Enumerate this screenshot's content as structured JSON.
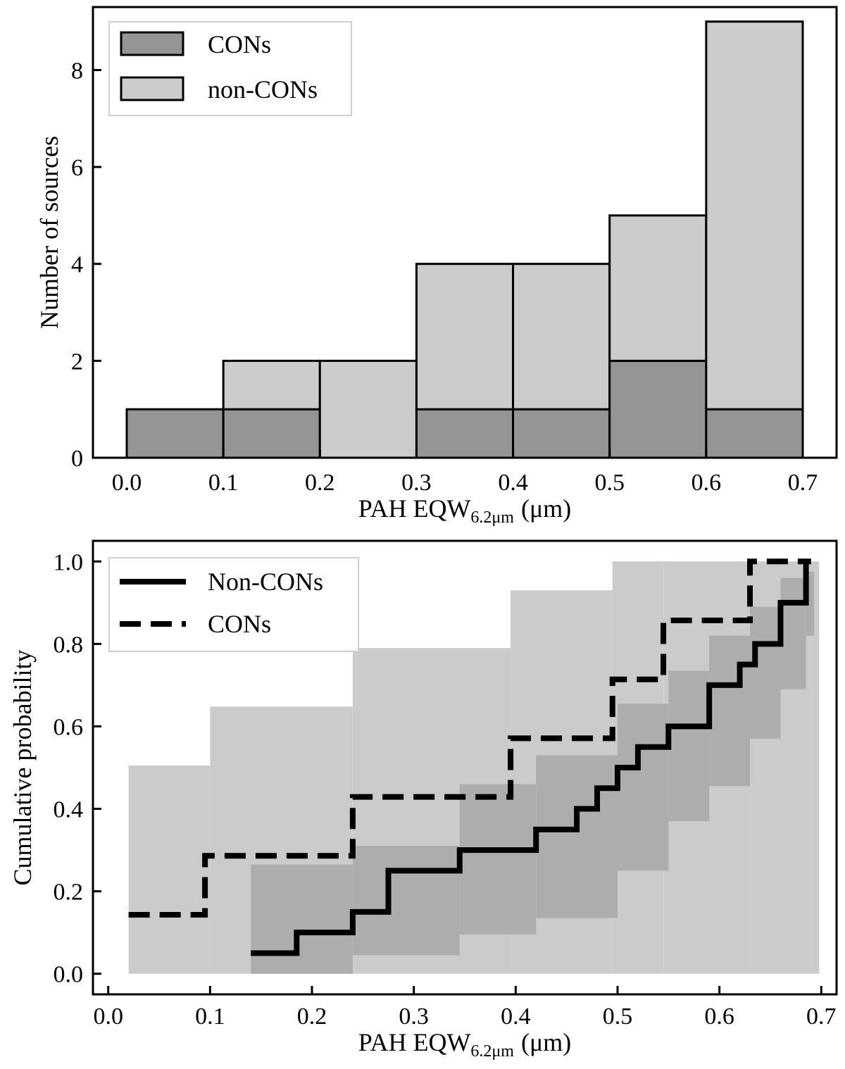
{
  "chart_data": [
    {
      "type": "bar",
      "stacked": true,
      "xlabel_main": "PAH EQW",
      "xlabel_sub": "6.2μm",
      "xlabel_unit": "(μm)",
      "ylabel": "Number of sources",
      "xlim": [
        -0.035,
        0.735
      ],
      "ylim": [
        0,
        9.3
      ],
      "xticks": [
        "0.0",
        "0.1",
        "0.2",
        "0.3",
        "0.4",
        "0.5",
        "0.6",
        "0.7"
      ],
      "yticks": [
        "0",
        "2",
        "4",
        "6",
        "8"
      ],
      "bin_edges": [
        0.0,
        0.1,
        0.2,
        0.3,
        0.4,
        0.5,
        0.6,
        0.7
      ],
      "series": [
        {
          "name": "CONs",
          "values": [
            1,
            1,
            0,
            1,
            1,
            2,
            1
          ],
          "color": "#959595"
        },
        {
          "name": "non-CONs",
          "values": [
            0,
            1,
            2,
            3,
            3,
            3,
            8
          ],
          "color": "#cccccc"
        }
      ],
      "legend": {
        "position": "top-left",
        "entries": [
          "CONs",
          "non-CONs"
        ]
      }
    },
    {
      "type": "line",
      "step": true,
      "xlabel_main": "PAH EQW",
      "xlabel_sub": "6.2μm",
      "xlabel_unit": "(μm)",
      "ylabel": "Cumulative probability",
      "xlim": [
        -0.015,
        0.715
      ],
      "ylim": [
        -0.05,
        1.05
      ],
      "xticks": [
        "0.0",
        "0.1",
        "0.2",
        "0.3",
        "0.4",
        "0.5",
        "0.6",
        "0.7"
      ],
      "yticks": [
        "0.0",
        "0.2",
        "0.4",
        "0.6",
        "0.8",
        "1.0"
      ],
      "series": [
        {
          "name": "Non-CONs",
          "style": "solid",
          "x": [
            0.14,
            0.185,
            0.24,
            0.275,
            0.345,
            0.42,
            0.46,
            0.48,
            0.5,
            0.52,
            0.55,
            0.59,
            0.62,
            0.635,
            0.66,
            0.685,
            0.685
          ],
          "y": [
            0.05,
            0.1,
            0.15,
            0.25,
            0.3,
            0.35,
            0.4,
            0.45,
            0.5,
            0.55,
            0.6,
            0.7,
            0.75,
            0.8,
            0.9,
            1.0,
            1.0
          ]
        },
        {
          "name": "CONs",
          "style": "dashed",
          "x": [
            0.02,
            0.095,
            0.24,
            0.395,
            0.495,
            0.545,
            0.63,
            0.69
          ],
          "y": [
            0.143,
            0.286,
            0.429,
            0.571,
            0.714,
            0.857,
            1.0,
            1.0
          ]
        }
      ],
      "bands": [
        {
          "name": "CONs-band",
          "color": "#cbcbcb",
          "x": [
            0.02,
            0.1,
            0.24,
            0.395,
            0.495,
            0.545,
            0.63,
            0.69
          ],
          "lower": [
            0.0,
            0.0,
            0.0,
            0.0,
            0.0,
            0.0,
            0.0,
            0.0
          ],
          "upper": [
            0.505,
            0.648,
            0.79,
            0.93,
            1.0,
            1.0,
            1.0,
            1.0
          ]
        },
        {
          "name": "Non-CONs-band",
          "color": "#adadad",
          "x": [
            0.14,
            0.24,
            0.345,
            0.42,
            0.5,
            0.55,
            0.59,
            0.63,
            0.66,
            0.685
          ],
          "lower": [
            0.0,
            0.045,
            0.095,
            0.135,
            0.25,
            0.37,
            0.455,
            0.57,
            0.69,
            0.82
          ],
          "upper": [
            0.265,
            0.31,
            0.46,
            0.53,
            0.655,
            0.735,
            0.82,
            0.89,
            0.96,
            0.975
          ]
        }
      ],
      "legend": {
        "position": "top-left",
        "entries": [
          "Non-CONs",
          "CONs"
        ]
      }
    }
  ]
}
